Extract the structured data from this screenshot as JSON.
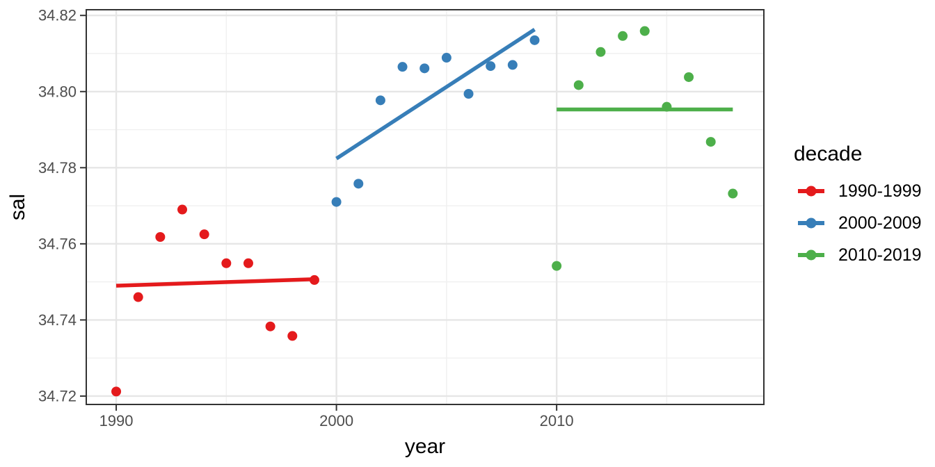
{
  "chart_data": {
    "type": "scatter",
    "title": "",
    "xlabel": "year",
    "ylabel": "sal",
    "legend_title": "decade",
    "legend_position": "right",
    "grid": "on",
    "xlim": [
      1988.64,
      2019.41
    ],
    "ylim": [
      34.7178,
      34.8215
    ],
    "x_ticks": [
      {
        "v": 1990,
        "label": "1990"
      },
      {
        "v": 2000,
        "label": "2000"
      },
      {
        "v": 2010,
        "label": "2010"
      }
    ],
    "x_minor_ticks": [
      1995,
      2005,
      2015
    ],
    "y_ticks": [
      {
        "v": 34.72,
        "label": "34.72"
      },
      {
        "v": 34.74,
        "label": "34.74"
      },
      {
        "v": 34.76,
        "label": "34.76"
      },
      {
        "v": 34.78,
        "label": "34.78"
      },
      {
        "v": 34.8,
        "label": "34.80"
      },
      {
        "v": 34.82,
        "label": "34.82"
      }
    ],
    "y_minor_ticks": [
      34.73,
      34.75,
      34.77,
      34.79,
      34.81
    ],
    "series": [
      {
        "name": "1990-1999",
        "color": "#E41A1C",
        "points": [
          [
            1990,
            34.7212
          ],
          [
            1991,
            34.746
          ],
          [
            1992,
            34.7618
          ],
          [
            1993,
            34.769
          ],
          [
            1994,
            34.7625
          ],
          [
            1995,
            34.7549
          ],
          [
            1996,
            34.7549
          ],
          [
            1997,
            34.7383
          ],
          [
            1998,
            34.7358
          ],
          [
            1999,
            34.7505
          ]
        ],
        "trend": [
          [
            1990,
            34.749
          ],
          [
            1999,
            34.7507
          ]
        ]
      },
      {
        "name": "2000-2009",
        "color": "#377EB8",
        "points": [
          [
            2000,
            34.771
          ],
          [
            2001,
            34.7758
          ],
          [
            2002,
            34.7977
          ],
          [
            2003,
            34.8065
          ],
          [
            2004,
            34.8061
          ],
          [
            2005,
            34.8089
          ],
          [
            2006,
            34.7994
          ],
          [
            2007,
            34.8067
          ],
          [
            2008,
            34.807
          ],
          [
            2009,
            34.8135
          ]
        ],
        "trend": [
          [
            2000,
            34.7824
          ],
          [
            2009,
            34.8163
          ]
        ]
      },
      {
        "name": "2010-2019",
        "color": "#4DAF4A",
        "points": [
          [
            2010,
            34.7542
          ],
          [
            2011,
            34.8017
          ],
          [
            2012,
            34.8104
          ],
          [
            2013,
            34.8146
          ],
          [
            2014,
            34.8159
          ],
          [
            2015,
            34.796
          ],
          [
            2016,
            34.8038
          ],
          [
            2017,
            34.7868
          ],
          [
            2018,
            34.7732
          ]
        ],
        "trend": [
          [
            2010,
            34.7953
          ],
          [
            2018,
            34.7953
          ]
        ]
      }
    ]
  },
  "style_colors": {
    "panel_background": "#FFFFFF",
    "page_background": "#FFFFFF",
    "grid_major": "#E6E6E6",
    "grid_minor": "#F0F0F0",
    "panel_border": "#333333",
    "tick_mark": "#333333",
    "tick_label": "#4D4D4D",
    "axis_title": "#000000",
    "legend_text": "#000000"
  }
}
